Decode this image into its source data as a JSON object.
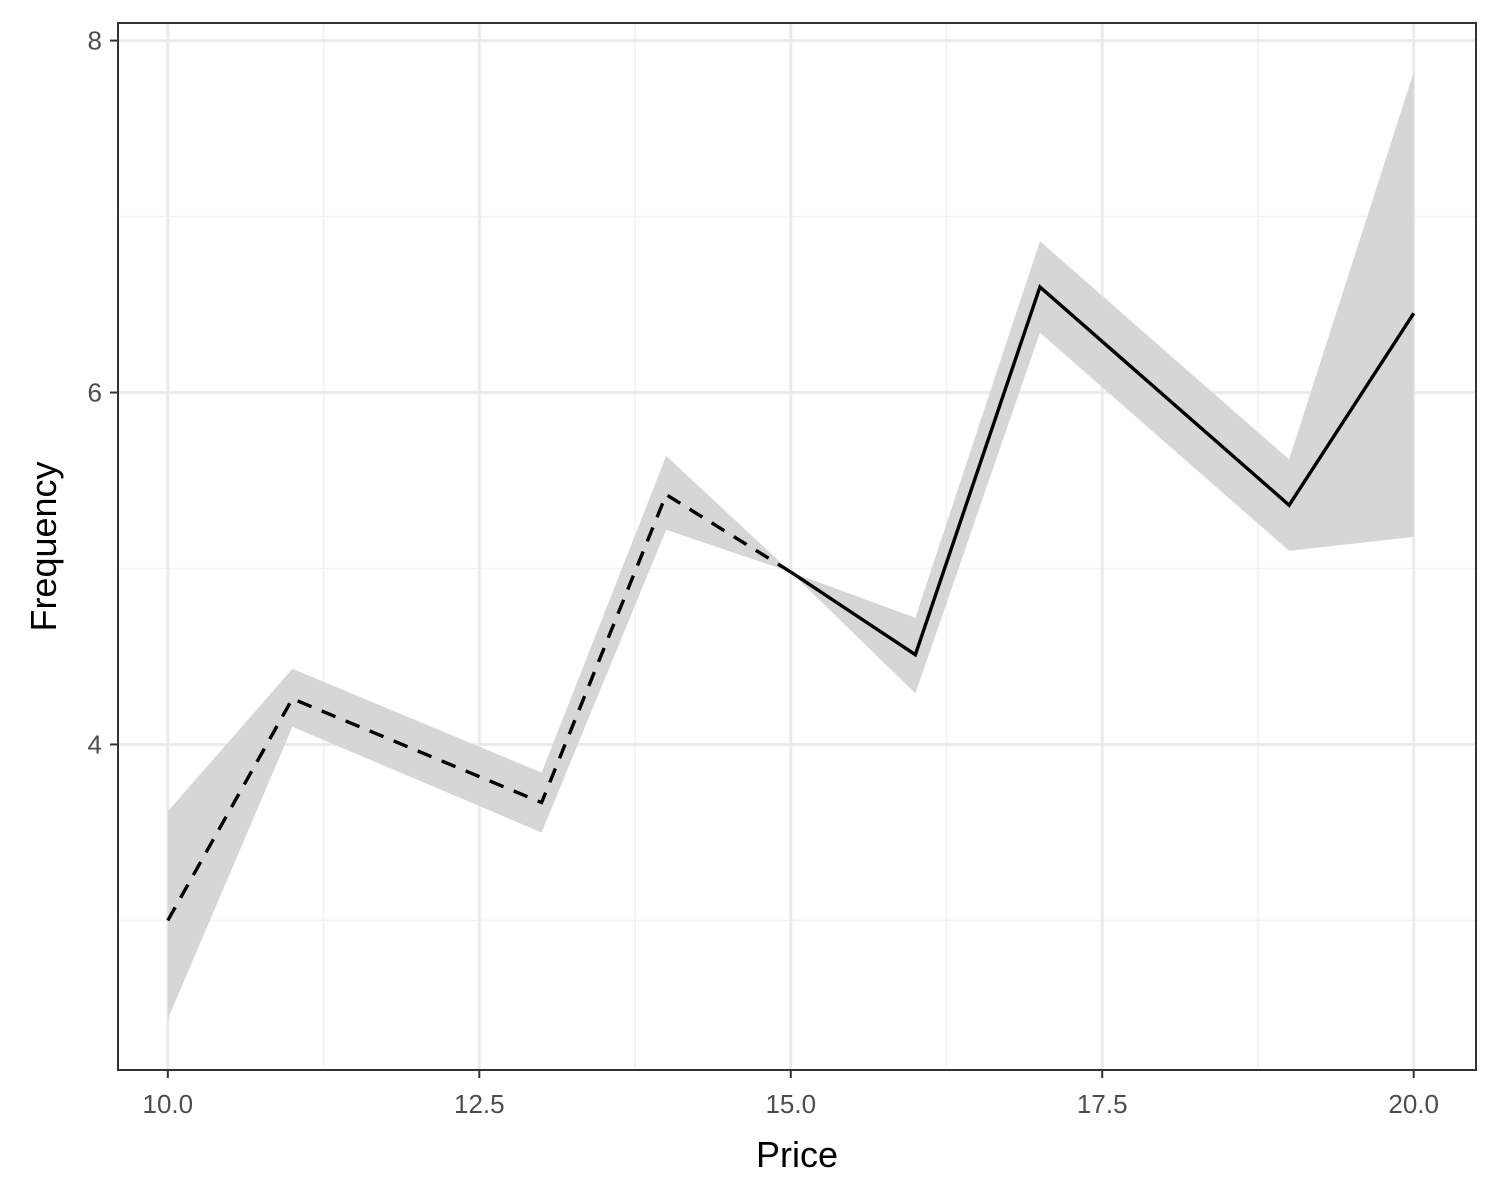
{
  "chart_data": {
    "type": "line",
    "title": "",
    "xlabel": "Price",
    "ylabel": "Frequency",
    "xlim": [
      9.6,
      20.5
    ],
    "ylim": [
      2.15,
      8.1
    ],
    "x_ticks": [
      10.0,
      12.5,
      15.0,
      17.5,
      20.0
    ],
    "x_tick_labels": [
      "10.0",
      "12.5",
      "15.0",
      "17.5",
      "20.0"
    ],
    "x_minor_ticks": [
      11.25,
      13.75,
      16.25,
      18.75
    ],
    "y_ticks": [
      4,
      6,
      8
    ],
    "y_tick_labels": [
      "4",
      "6",
      "8"
    ],
    "y_minor_ticks": [
      3,
      5,
      7
    ],
    "grid": true,
    "legend": "none",
    "series": [
      {
        "linetype": "dashed",
        "color": "#000000",
        "x": [
          10,
          11,
          13,
          14,
          15
        ],
        "y": [
          3.0,
          4.26,
          3.67,
          5.42,
          4.98
        ]
      },
      {
        "linetype": "solid",
        "color": "#000000",
        "x": [
          15,
          16,
          17,
          19,
          20
        ],
        "y": [
          4.98,
          4.51,
          6.6,
          5.36,
          6.45
        ]
      }
    ],
    "ribbon": {
      "color": "#d6d6d6",
      "x": [
        10,
        11,
        13,
        14,
        15,
        16,
        17,
        19,
        20
      ],
      "lower": [
        2.44,
        4.1,
        3.5,
        5.22,
        4.98,
        4.29,
        6.34,
        5.1,
        5.18
      ],
      "upper": [
        3.62,
        4.43,
        3.84,
        5.64,
        4.98,
        4.72,
        6.86,
        5.62,
        7.82
      ]
    },
    "colors": {
      "panel_border": "#333333",
      "grid_major": "#ebebeb",
      "grid_minor": "#f2f2f2",
      "tick_text": "#4d4d4d"
    }
  }
}
